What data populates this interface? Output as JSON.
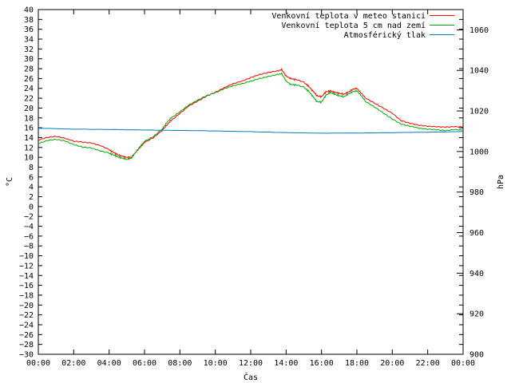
{
  "chart_data": {
    "type": "line",
    "title": "",
    "xlabel": "Čas",
    "ylabel": "°C",
    "y2label": "hPa",
    "x_ticks": [
      "00:00",
      "02:00",
      "04:00",
      "06:00",
      "08:00",
      "10:00",
      "12:00",
      "14:00",
      "16:00",
      "18:00",
      "20:00",
      "22:00",
      "00:00"
    ],
    "xlim_hours": [
      0,
      24
    ],
    "ylim": [
      -30,
      40
    ],
    "y_tick_step": 2,
    "y2lim": [
      900,
      1070
    ],
    "y2_ticks": [
      900,
      920,
      940,
      960,
      980,
      1000,
      1020,
      1040,
      1060
    ],
    "grid": false,
    "legend_position": "top-right",
    "series": [
      {
        "name": "Venkovní teplota v meteo stanici",
        "color": "#ff0000",
        "axis": "left",
        "x": [
          0,
          0.5,
          1,
          1.5,
          2,
          2.5,
          3,
          3.5,
          4,
          4.25,
          4.5,
          4.75,
          5,
          5.25,
          5.5,
          5.75,
          6,
          6.5,
          7,
          7.25,
          7.5,
          8,
          8.5,
          9,
          9.5,
          10,
          10.5,
          11,
          11.5,
          12,
          12.5,
          13,
          13.5,
          13.75,
          14,
          14.25,
          14.5,
          15,
          15.25,
          15.5,
          15.75,
          16,
          16.25,
          16.5,
          16.75,
          17,
          17.25,
          17.5,
          17.75,
          18,
          18.25,
          18.5,
          19,
          19.5,
          20,
          20.5,
          21,
          21.5,
          22,
          22.5,
          23,
          23.5,
          24
        ],
        "y": [
          13.5,
          14,
          14.2,
          13.8,
          13.2,
          13,
          12.8,
          12.3,
          11.5,
          11,
          10.5,
          10.2,
          10,
          10,
          11,
          12,
          13,
          14,
          15.5,
          16.5,
          17.5,
          19,
          20.5,
          21.5,
          22.5,
          23.3,
          24.2,
          25,
          25.5,
          26.2,
          26.8,
          27.2,
          27.5,
          27.8,
          26.5,
          26,
          25.8,
          25.2,
          24.5,
          23.5,
          22.5,
          22.3,
          23.3,
          23.5,
          23.2,
          23,
          22.8,
          23.2,
          23.8,
          24,
          23,
          22,
          21,
          20,
          19,
          17.5,
          17,
          16.6,
          16.4,
          16.3,
          16.2,
          16.3,
          16.2
        ]
      },
      {
        "name": "Venkovní teplota 5 cm nad zemí",
        "color": "#00aa00",
        "axis": "left",
        "x": [
          0,
          0.5,
          1,
          1.5,
          2,
          2.5,
          3,
          3.5,
          4,
          4.25,
          4.5,
          4.75,
          5,
          5.25,
          5.5,
          5.75,
          6,
          6.5,
          7,
          7.25,
          7.5,
          8,
          8.5,
          9,
          9.5,
          10,
          10.5,
          11,
          11.5,
          12,
          12.5,
          13,
          13.5,
          13.75,
          14,
          14.25,
          14.5,
          15,
          15.25,
          15.5,
          15.75,
          16,
          16.25,
          16.5,
          16.75,
          17,
          17.25,
          17.5,
          17.75,
          18,
          18.25,
          18.5,
          19,
          19.5,
          20,
          20.5,
          21,
          21.5,
          22,
          22.5,
          23,
          23.5,
          24
        ],
        "y": [
          12.8,
          13.4,
          13.6,
          13.3,
          12.5,
          12,
          11.8,
          11.2,
          10.8,
          10.5,
          10.1,
          9.8,
          9.6,
          9.8,
          11,
          12.2,
          13.2,
          14.2,
          15.8,
          17,
          18,
          19.3,
          20.7,
          21.7,
          22.6,
          23.2,
          24,
          24.6,
          25,
          25.5,
          26,
          26.4,
          26.8,
          27,
          25.5,
          24.8,
          24.7,
          24.2,
          23.5,
          22.4,
          21.3,
          21.2,
          22.6,
          23.2,
          22.8,
          22.5,
          22.3,
          22.8,
          23.3,
          23.5,
          22.5,
          21.3,
          20.2,
          19,
          17.8,
          16.8,
          16.4,
          16,
          15.8,
          15.7,
          15.5,
          15.7,
          15.6
        ]
      },
      {
        "name": "Atmosférický tlak",
        "color": "#0080c0",
        "axis": "right",
        "x": [
          0,
          2,
          4,
          6,
          8,
          10,
          12,
          14,
          16,
          18,
          20,
          22,
          23,
          24
        ],
        "y": [
          1011.5,
          1011,
          1010.8,
          1010.6,
          1010.4,
          1010.2,
          1009.8,
          1009.3,
          1009,
          1009.1,
          1009.3,
          1009.6,
          1009.7,
          1009.9
        ]
      }
    ]
  }
}
